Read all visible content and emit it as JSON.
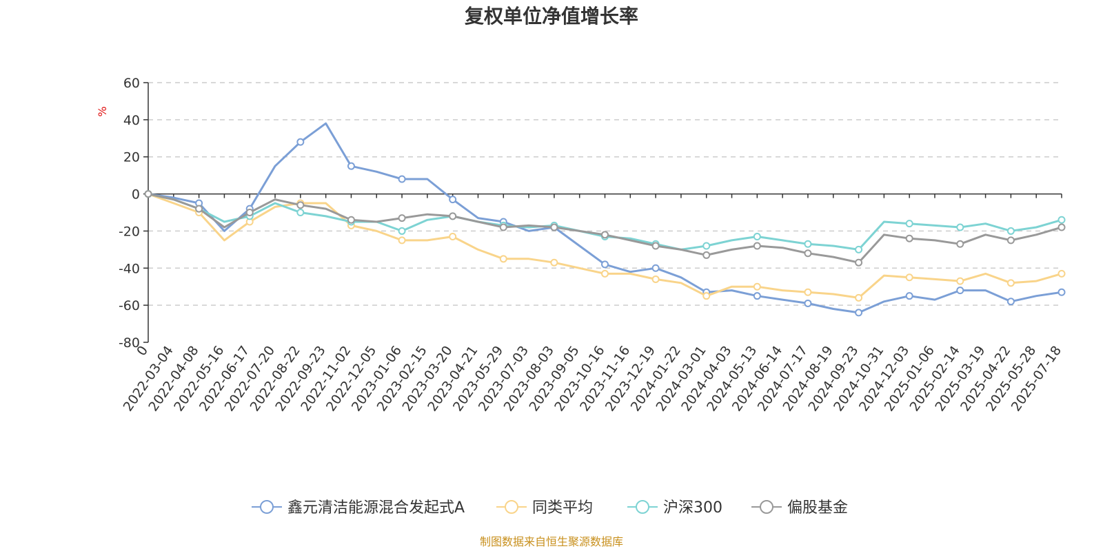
{
  "chart_data": {
    "type": "line",
    "title": "复权单位净值增长率",
    "ylabel": "%",
    "ylim": [
      -80,
      60
    ],
    "yticks": [
      60,
      40,
      20,
      0,
      -20,
      -40,
      -60,
      -80
    ],
    "grid": true,
    "legend_position": "bottom",
    "source": "制图数据来自恒生聚源数据库",
    "x_labels": [
      "0",
      "2022-03-04",
      "2022-04-08",
      "2022-05-16",
      "2022-06-17",
      "2022-07-20",
      "2022-08-22",
      "2022-09-23",
      "2022-11-02",
      "2022-12-05",
      "2023-01-06",
      "2023-02-15",
      "2023-03-20",
      "2023-04-21",
      "2023-05-29",
      "2023-07-03",
      "2023-08-03",
      "2023-09-05",
      "2023-10-16",
      "2023-11-16",
      "2023-12-19",
      "2024-01-22",
      "2024-03-01",
      "2024-04-03",
      "2024-05-13",
      "2024-06-14",
      "2024-07-17",
      "2024-08-19",
      "2024-09-23",
      "2024-10-31",
      "2024-12-03",
      "2025-01-06",
      "2025-02-14",
      "2025-03-19",
      "2025-04-22",
      "2025-05-28",
      "2025-07-18"
    ],
    "series": [
      {
        "name": "鑫元清洁能源混合发起式A",
        "color": "#7b9fd6",
        "values": [
          0,
          -2,
          -5,
          -20,
          -8,
          15,
          28,
          38,
          15,
          12,
          8,
          8,
          -3,
          -13,
          -15,
          -20,
          -18,
          -28,
          -38,
          -42,
          -40,
          -45,
          -53,
          -52,
          -55,
          -57,
          -59,
          -62,
          -64,
          -58,
          -55,
          -57,
          -52,
          -52,
          -58,
          -55,
          -53
        ]
      },
      {
        "name": "同类平均",
        "color": "#f9d48a",
        "values": [
          0,
          -5,
          -10,
          -25,
          -15,
          -7,
          -5,
          -5,
          -17,
          -20,
          -25,
          -25,
          -23,
          -30,
          -35,
          -35,
          -37,
          -40,
          -43,
          -43,
          -46,
          -48,
          -55,
          -50,
          -50,
          -52,
          -53,
          -54,
          -56,
          -44,
          -45,
          -46,
          -47,
          -43,
          -48,
          -47,
          -43
        ]
      },
      {
        "name": "沪深300",
        "color": "#7dd3d3",
        "values": [
          0,
          -3,
          -8,
          -15,
          -12,
          -5,
          -10,
          -12,
          -15,
          -15,
          -20,
          -14,
          -12,
          -15,
          -17,
          -18,
          -17,
          -20,
          -23,
          -24,
          -27,
          -30,
          -28,
          -25,
          -23,
          -25,
          -27,
          -28,
          -30,
          -15,
          -16,
          -17,
          -18,
          -16,
          -20,
          -18,
          -14
        ]
      },
      {
        "name": "偏股基金",
        "color": "#999999",
        "values": [
          0,
          -3,
          -8,
          -18,
          -10,
          -3,
          -6,
          -8,
          -14,
          -15,
          -13,
          -11,
          -12,
          -15,
          -18,
          -17,
          -18,
          -20,
          -22,
          -25,
          -28,
          -30,
          -33,
          -30,
          -28,
          -29,
          -32,
          -34,
          -37,
          -22,
          -24,
          -25,
          -27,
          -22,
          -25,
          -22,
          -18
        ]
      }
    ]
  }
}
